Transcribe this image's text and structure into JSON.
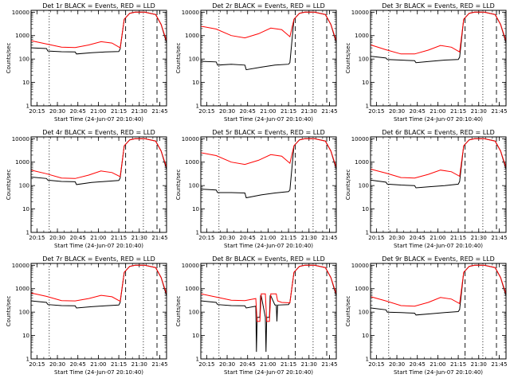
{
  "chart_data": {
    "type": "line",
    "grid": false,
    "legend": "",
    "xlabel": "Start Time (24-Jun-07 20:10:40)",
    "ylabel": "Counts/sec",
    "yscale": "log",
    "ylim": [
      1,
      12000
    ],
    "y_ticks": [
      "1",
      "10",
      "100",
      "1000",
      "10000"
    ],
    "x_ticks": [
      "20:15",
      "20:30",
      "20:45",
      "21:00",
      "21:15",
      "21:30",
      "21:45"
    ],
    "x_tick_minutes": [
      255,
      270,
      285,
      300,
      315,
      330,
      345
    ],
    "xlim_minutes": [
      250.7,
      350
    ],
    "series_colors": {
      "events": "#000000",
      "lld": "#ff0000"
    },
    "vlines": {
      "dotted_minutes": [
        264,
        333
      ],
      "dashed_minutes": [
        320,
        343
      ]
    },
    "panels": [
      {
        "title": "Det 1r  BLACK = Events, RED = LLD",
        "events": {
          "x": [
            251,
            262,
            263,
            273,
            283,
            284,
            295,
            305,
            315,
            316,
            319,
            323,
            327,
            329,
            334,
            342,
            346,
            350
          ],
          "y": [
            300,
            280,
            220,
            205,
            200,
            165,
            185,
            200,
            210,
            270,
            5000,
            9000,
            10000,
            10000,
            10000,
            8000,
            3000,
            500
          ]
        },
        "lld": {
          "x": [
            251,
            262,
            273,
            283,
            293,
            302,
            310,
            316,
            319,
            323,
            327,
            329,
            334,
            342,
            346,
            350
          ],
          "y": [
            600,
            440,
            320,
            310,
            400,
            550,
            480,
            300,
            5000,
            9000,
            10000,
            10000,
            10000,
            8000,
            3000,
            600
          ]
        }
      },
      {
        "title": "Det 2r  BLACK = Events, RED = LLD",
        "events": {
          "x": [
            251,
            262,
            263,
            273,
            283,
            284,
            295,
            305,
            315,
            316,
            319,
            323,
            327,
            329,
            334,
            342,
            346,
            350
          ],
          "y": [
            80,
            75,
            55,
            60,
            55,
            35,
            45,
            55,
            60,
            70,
            5000,
            9000,
            10000,
            10000,
            10000,
            8000,
            3000,
            500
          ]
        },
        "lld": {
          "x": [
            251,
            262,
            273,
            283,
            293,
            302,
            310,
            316,
            319,
            323,
            327,
            329,
            334,
            342,
            346,
            350
          ],
          "y": [
            2500,
            1900,
            1000,
            800,
            1200,
            2100,
            1800,
            900,
            5000,
            9000,
            10000,
            10000,
            10000,
            8000,
            3000,
            600
          ]
        }
      },
      {
        "title": "Det 3r  BLACK = Events, RED = LLD",
        "events": {
          "x": [
            251,
            262,
            263,
            273,
            283,
            284,
            295,
            305,
            315,
            316,
            319,
            323,
            327,
            329,
            334,
            342,
            346,
            350
          ],
          "y": [
            130,
            110,
            95,
            90,
            85,
            70,
            80,
            90,
            95,
            120,
            5000,
            9000,
            10000,
            10000,
            10000,
            8000,
            3000,
            500
          ]
        },
        "lld": {
          "x": [
            251,
            262,
            273,
            283,
            293,
            302,
            310,
            316,
            319,
            323,
            327,
            329,
            334,
            342,
            346,
            350
          ],
          "y": [
            400,
            250,
            165,
            165,
            240,
            380,
            320,
            200,
            5000,
            9000,
            10000,
            10000,
            10000,
            8000,
            3000,
            600
          ]
        }
      },
      {
        "title": "Det 4r  BLACK = Events, RED = LLD",
        "events": {
          "x": [
            251,
            262,
            263,
            273,
            283,
            284,
            295,
            305,
            315,
            316,
            319,
            323,
            327,
            329,
            334,
            342,
            346,
            350
          ],
          "y": [
            230,
            200,
            170,
            150,
            145,
            110,
            135,
            150,
            165,
            210,
            5000,
            9000,
            10000,
            10000,
            10000,
            8000,
            3000,
            500
          ]
        },
        "lld": {
          "x": [
            251,
            262,
            273,
            283,
            293,
            302,
            310,
            316,
            319,
            323,
            327,
            329,
            334,
            342,
            346,
            350
          ],
          "y": [
            450,
            320,
            210,
            200,
            280,
            420,
            360,
            240,
            5000,
            9000,
            10000,
            10000,
            10000,
            8000,
            3000,
            600
          ]
        }
      },
      {
        "title": "Det 5r  BLACK = Events, RED = LLD",
        "events": {
          "x": [
            251,
            262,
            263,
            273,
            283,
            284,
            295,
            305,
            315,
            316,
            319,
            323,
            327,
            329,
            334,
            342,
            346,
            350
          ],
          "y": [
            70,
            65,
            50,
            50,
            48,
            30,
            40,
            48,
            55,
            65,
            5000,
            9000,
            10000,
            10000,
            10000,
            8000,
            3000,
            500
          ]
        },
        "lld": {
          "x": [
            251,
            262,
            273,
            283,
            293,
            302,
            310,
            316,
            319,
            323,
            327,
            329,
            334,
            342,
            346,
            350
          ],
          "y": [
            2500,
            1900,
            1000,
            800,
            1200,
            2100,
            1800,
            900,
            5000,
            9000,
            10000,
            10000,
            10000,
            8000,
            3000,
            600
          ]
        }
      },
      {
        "title": "Det 6r  BLACK = Events, RED = LLD",
        "events": {
          "x": [
            251,
            262,
            263,
            273,
            283,
            284,
            295,
            305,
            315,
            316,
            319,
            323,
            327,
            329,
            334,
            342,
            346,
            350
          ],
          "y": [
            170,
            140,
            115,
            105,
            100,
            80,
            90,
            100,
            115,
            150,
            5000,
            9000,
            10000,
            10000,
            10000,
            8000,
            3000,
            500
          ]
        },
        "lld": {
          "x": [
            251,
            262,
            273,
            283,
            293,
            302,
            310,
            316,
            319,
            323,
            327,
            329,
            334,
            342,
            346,
            350
          ],
          "y": [
            500,
            340,
            220,
            210,
            300,
            460,
            390,
            250,
            5000,
            9000,
            10000,
            10000,
            10000,
            8000,
            3000,
            600
          ]
        }
      },
      {
        "title": "Det 7r  BLACK = Events, RED = LLD",
        "events": {
          "x": [
            251,
            262,
            263,
            273,
            283,
            284,
            295,
            305,
            315,
            316,
            319,
            323,
            327,
            329,
            334,
            342,
            346,
            350
          ],
          "y": [
            300,
            260,
            210,
            190,
            185,
            150,
            170,
            185,
            200,
            260,
            5000,
            9000,
            10000,
            10000,
            10000,
            8000,
            3000,
            500
          ]
        },
        "lld": {
          "x": [
            251,
            262,
            273,
            283,
            293,
            302,
            310,
            316,
            319,
            323,
            327,
            329,
            334,
            342,
            346,
            350
          ],
          "y": [
            650,
            470,
            310,
            300,
            380,
            520,
            450,
            290,
            5000,
            9000,
            10000,
            10000,
            10000,
            8000,
            3000,
            600
          ]
        }
      },
      {
        "title": "Det 8r  BLACK = Events, RED = LLD",
        "events": {
          "x": [
            251,
            262,
            263,
            273,
            283,
            284,
            291,
            291.5,
            292,
            294,
            294.5,
            295,
            298,
            298.5,
            299,
            301,
            301.5,
            302,
            305,
            306,
            306.5,
            307,
            315,
            316,
            319,
            323,
            327,
            329,
            334,
            342,
            346,
            350
          ],
          "y": [
            300,
            260,
            210,
            190,
            185,
            150,
            180,
            2,
            60,
            60,
            500,
            500,
            60,
            2,
            60,
            60,
            500,
            500,
            200,
            200,
            40,
            200,
            210,
            260,
            5000,
            9000,
            10000,
            10000,
            10000,
            8000,
            3000,
            500
          ]
        },
        "lld": {
          "x": [
            251,
            262,
            273,
            283,
            291,
            292,
            294,
            295,
            298,
            299,
            301,
            302,
            306,
            307,
            310,
            316,
            319,
            323,
            327,
            329,
            334,
            342,
            346,
            350
          ],
          "y": [
            600,
            440,
            320,
            310,
            380,
            40,
            40,
            600,
            600,
            40,
            40,
            600,
            600,
            300,
            260,
            250,
            5000,
            9000,
            10000,
            10000,
            10000,
            8000,
            3000,
            600
          ]
        }
      },
      {
        "title": "Det 9r  BLACK = Events, RED = LLD",
        "events": {
          "x": [
            251,
            262,
            263,
            273,
            283,
            284,
            295,
            305,
            315,
            316,
            319,
            323,
            327,
            329,
            334,
            342,
            346,
            350
          ],
          "y": [
            150,
            125,
            100,
            95,
            90,
            75,
            85,
            95,
            105,
            130,
            5000,
            9000,
            10000,
            10000,
            10000,
            8000,
            3000,
            500
          ]
        },
        "lld": {
          "x": [
            251,
            262,
            273,
            283,
            293,
            302,
            310,
            316,
            319,
            323,
            327,
            329,
            334,
            342,
            346,
            350
          ],
          "y": [
            450,
            300,
            190,
            180,
            260,
            420,
            360,
            230,
            5000,
            9000,
            10000,
            10000,
            10000,
            8000,
            3000,
            600
          ]
        }
      }
    ]
  }
}
